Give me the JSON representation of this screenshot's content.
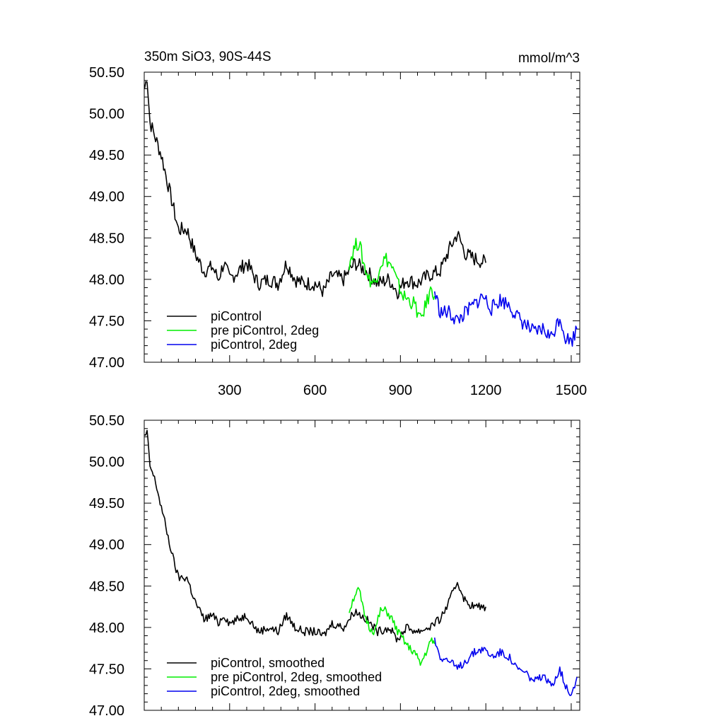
{
  "colors": {
    "piControl": "#000000",
    "pre_piControl_2deg": "#00ee00",
    "piControl_2deg": "#0000ee"
  },
  "chart_data": [
    {
      "type": "line",
      "title": "350m SiO3, 90S-44S",
      "units": "mmol/m^3",
      "xlim": [
        0,
        1530
      ],
      "ylim": [
        47.0,
        50.5
      ],
      "x_ticks": [
        300,
        600,
        900,
        1200,
        1500
      ],
      "x_tick_labels": [
        "300",
        "600",
        "900",
        "1200",
        "1500"
      ],
      "y_ticks": [
        47.0,
        47.5,
        48.0,
        48.5,
        49.0,
        49.5,
        50.0,
        50.5
      ],
      "y_tick_labels": [
        "47.00",
        "47.50",
        "48.00",
        "48.50",
        "49.00",
        "49.50",
        "50.00",
        "50.50"
      ],
      "grid": false,
      "legend_position": "bottom-left",
      "series": [
        {
          "name": "piControl",
          "color_key": "piControl",
          "x": [
            1,
            10,
            20,
            40,
            60,
            80,
            100,
            120,
            150,
            180,
            210,
            240,
            260,
            280,
            300,
            330,
            360,
            400,
            440,
            470,
            500,
            530,
            560,
            600,
            630,
            660,
            700,
            740,
            780,
            820,
            860,
            890,
            920,
            960,
            1000,
            1040,
            1070,
            1100,
            1130,
            1160,
            1200
          ],
          "y": [
            50.3,
            50.45,
            49.9,
            49.7,
            49.5,
            49.2,
            48.9,
            48.6,
            48.6,
            48.3,
            48.1,
            48.15,
            48.0,
            48.2,
            48.0,
            48.1,
            48.2,
            47.95,
            48.0,
            47.95,
            48.2,
            48.0,
            47.95,
            47.95,
            47.85,
            48.05,
            48.0,
            48.2,
            48.1,
            47.95,
            48.0,
            47.85,
            48.0,
            47.95,
            48.05,
            48.1,
            48.35,
            48.55,
            48.3,
            48.25,
            48.2
          ]
        },
        {
          "name": "pre piControl, 2deg",
          "color_key": "pre_piControl_2deg",
          "x": [
            720,
            740,
            755,
            770,
            790,
            810,
            830,
            850,
            870,
            890,
            910,
            930,
            950,
            970,
            990,
            1010,
            1020
          ],
          "y": [
            48.2,
            48.4,
            48.45,
            48.2,
            48.0,
            47.95,
            48.2,
            48.25,
            48.15,
            47.95,
            47.8,
            47.75,
            47.7,
            47.5,
            47.7,
            47.9,
            47.8
          ]
        },
        {
          "name": "piControl, 2deg",
          "color_key": "piControl_2deg",
          "x": [
            1020,
            1040,
            1070,
            1100,
            1130,
            1160,
            1190,
            1220,
            1250,
            1280,
            1310,
            1340,
            1370,
            1400,
            1430,
            1460,
            1480,
            1500,
            1520
          ],
          "y": [
            47.85,
            47.6,
            47.6,
            47.5,
            47.6,
            47.7,
            47.8,
            47.65,
            47.75,
            47.7,
            47.55,
            47.45,
            47.35,
            47.4,
            47.3,
            47.55,
            47.3,
            47.25,
            47.4
          ]
        }
      ]
    },
    {
      "type": "line",
      "title": "",
      "units": "",
      "xlim": [
        0,
        1530
      ],
      "ylim": [
        47.0,
        50.5
      ],
      "x_ticks": [
        300,
        600,
        900,
        1200,
        1500
      ],
      "x_tick_labels": [],
      "y_ticks": [
        47.0,
        47.5,
        48.0,
        48.5,
        49.0,
        49.5,
        50.0,
        50.5
      ],
      "y_tick_labels": [
        "47.00",
        "47.50",
        "48.00",
        "48.50",
        "49.00",
        "49.50",
        "50.00",
        "50.50"
      ],
      "grid": false,
      "legend_position": "bottom-left",
      "series": [
        {
          "name": "piControl, smoothed",
          "color_key": "piControl",
          "x": [
            1,
            10,
            20,
            40,
            60,
            80,
            100,
            120,
            150,
            180,
            210,
            240,
            260,
            280,
            300,
            330,
            360,
            400,
            440,
            470,
            500,
            530,
            560,
            600,
            630,
            660,
            700,
            740,
            780,
            820,
            860,
            890,
            920,
            960,
            1000,
            1040,
            1070,
            1100,
            1130,
            1160,
            1200
          ],
          "y": [
            50.3,
            50.35,
            49.95,
            49.75,
            49.45,
            49.15,
            48.85,
            48.6,
            48.6,
            48.3,
            48.1,
            48.15,
            48.05,
            48.15,
            48.05,
            48.1,
            48.15,
            47.95,
            48.0,
            47.95,
            48.15,
            48.0,
            47.95,
            47.95,
            47.9,
            48.05,
            48.0,
            48.2,
            48.1,
            47.95,
            48.0,
            47.85,
            48.0,
            47.95,
            48.0,
            48.1,
            48.3,
            48.55,
            48.3,
            48.25,
            48.25
          ]
        },
        {
          "name": "pre piControl, 2deg, smoothed",
          "color_key": "pre_piControl_2deg",
          "x": [
            720,
            740,
            755,
            770,
            790,
            810,
            830,
            850,
            870,
            890,
            910,
            930,
            950,
            970,
            990,
            1010,
            1020
          ],
          "y": [
            48.2,
            48.4,
            48.45,
            48.2,
            48.0,
            47.95,
            48.2,
            48.2,
            48.1,
            47.95,
            47.85,
            47.75,
            47.7,
            47.55,
            47.7,
            47.85,
            47.8
          ]
        },
        {
          "name": "piControl, 2deg, smoothed",
          "color_key": "piControl_2deg",
          "x": [
            1020,
            1040,
            1070,
            1100,
            1130,
            1160,
            1190,
            1220,
            1250,
            1280,
            1310,
            1340,
            1370,
            1400,
            1430,
            1460,
            1480,
            1500,
            1520
          ],
          "y": [
            47.85,
            47.65,
            47.6,
            47.5,
            47.6,
            47.7,
            47.75,
            47.65,
            47.7,
            47.65,
            47.5,
            47.45,
            47.35,
            47.4,
            47.3,
            47.5,
            47.3,
            47.2,
            47.4
          ]
        }
      ]
    }
  ]
}
